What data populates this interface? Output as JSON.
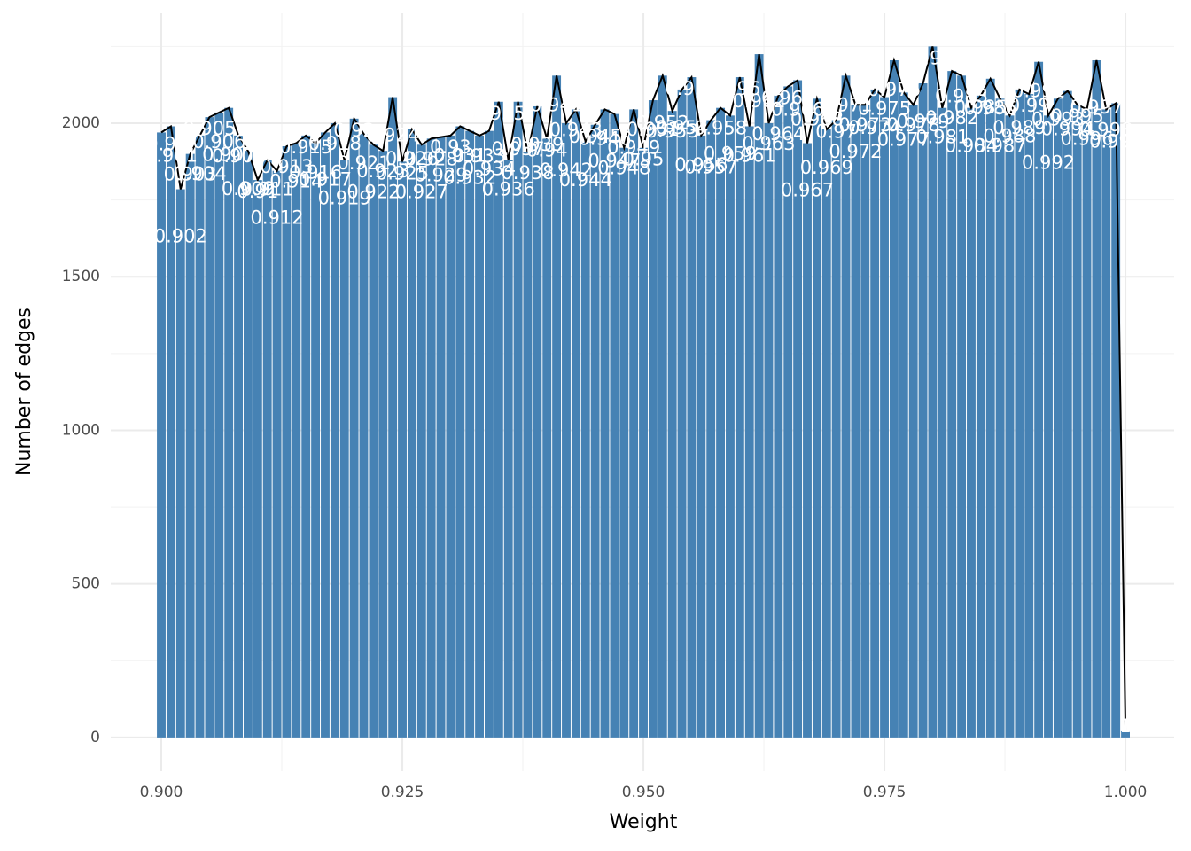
{
  "chart_data": {
    "type": "bar",
    "x_label": "Weight",
    "y_label": "Number of edges",
    "color": "#4682b4",
    "line_color": "#000000",
    "overlay_line": true,
    "grid": true,
    "x": [
      0.9,
      0.901,
      0.902,
      0.903,
      0.904,
      0.905,
      0.906,
      0.907,
      0.908,
      0.909,
      0.91,
      0.911,
      0.912,
      0.913,
      0.914,
      0.915,
      0.916,
      0.917,
      0.918,
      0.919,
      0.92,
      0.921,
      0.922,
      0.923,
      0.924,
      0.925,
      0.926,
      0.927,
      0.928,
      0.929,
      0.93,
      0.931,
      0.932,
      0.933,
      0.934,
      0.935,
      0.936,
      0.937,
      0.938,
      0.939,
      0.94,
      0.941,
      0.942,
      0.943,
      0.944,
      0.945,
      0.946,
      0.947,
      0.948,
      0.949,
      0.95,
      0.951,
      0.952,
      0.953,
      0.954,
      0.955,
      0.956,
      0.957,
      0.958,
      0.959,
      0.96,
      0.961,
      0.962,
      0.963,
      0.964,
      0.965,
      0.966,
      0.967,
      0.968,
      0.969,
      0.97,
      0.971,
      0.972,
      0.973,
      0.974,
      0.975,
      0.976,
      0.977,
      0.978,
      0.979,
      0.98,
      0.981,
      0.982,
      0.983,
      0.984,
      0.985,
      0.986,
      0.987,
      0.988,
      0.989,
      0.99,
      0.991,
      0.992,
      0.993,
      0.994,
      0.995,
      0.996,
      0.997,
      0.998,
      0.999,
      1.0
    ],
    "x_labels": [
      "0.9",
      "0.901",
      "0.902",
      "0.903",
      "0.904",
      "0.905",
      "0.906",
      "0.907",
      "0.908",
      "0.909",
      "0.91",
      "0.911",
      "0.912",
      "0.913",
      "0.914",
      "0.915",
      "0.916",
      "0.917",
      "0.918",
      "0.919",
      "0.92",
      "0.921",
      "0.922",
      "0.923",
      "0.924",
      "0.925",
      "0.926",
      "0.927",
      "0.928",
      "0.929",
      "0.93",
      "0.931",
      "0.932",
      "0.933",
      "0.934",
      "0.935",
      "0.936",
      "0.937",
      "0.938",
      "0.939",
      "0.94",
      "0.941",
      "0.942",
      "0.943",
      "0.944",
      "0.945",
      "0.946",
      "0.947",
      "0.948",
      "0.949",
      "0.95",
      "0.951",
      "0.952",
      "0.953",
      "0.954",
      "0.955",
      "0.956",
      "0.957",
      "0.958",
      "0.959",
      "0.96",
      "0.961",
      "0.962",
      "0.963",
      "0.964",
      "0.965",
      "0.966",
      "0.967",
      "0.968",
      "0.969",
      "0.97",
      "0.971",
      "0.972",
      "0.973",
      "0.974",
      "0.975",
      "0.976",
      "0.977",
      "0.978",
      "0.979",
      "0.98",
      "0.981",
      "0.982",
      "0.983",
      "0.984",
      "0.985",
      "0.986",
      "0.987",
      "0.988",
      "0.989",
      "0.99",
      "0.991",
      "0.992",
      "0.993",
      "0.994",
      "0.995",
      "0.996",
      "0.997",
      "0.998",
      "0.999",
      "1"
    ],
    "values": [
      1970,
      1990,
      1785,
      1900,
      1960,
      2020,
      2035,
      2050,
      1960,
      1910,
      1815,
      1880,
      1845,
      1925,
      1935,
      1960,
      1935,
      1970,
      2000,
      1880,
      2015,
      1965,
      1930,
      1910,
      2085,
      1875,
      1980,
      1930,
      1950,
      1955,
      1960,
      1990,
      1975,
      1960,
      1975,
      2070,
      1880,
      2070,
      1905,
      2055,
      1950,
      2155,
      2000,
      2045,
      1940,
      1995,
      2045,
      2030,
      1920,
      2045,
      1920,
      2075,
      2155,
      2040,
      2110,
      2150,
      1960,
      2010,
      2050,
      2025,
      2150,
      1990,
      2225,
      2000,
      2090,
      2120,
      2140,
      1935,
      2080,
      1980,
      2010,
      2155,
      2060,
      2060,
      2110,
      2085,
      2205,
      2100,
      2060,
      2130,
      2250,
      2050,
      2170,
      2155,
      2050,
      2090,
      2145,
      2080,
      2025,
      2110,
      2095,
      2200,
      2025,
      2080,
      2105,
      2060,
      2045,
      2205,
      2045,
      2065,
      20
    ],
    "xlim": [
      0.89476,
      1.00505
    ],
    "xticks": [
      {
        "value": 0.9,
        "label": "0.900"
      },
      {
        "value": 0.925,
        "label": "0.925"
      },
      {
        "value": 0.95,
        "label": "0.950"
      },
      {
        "value": 0.975,
        "label": "0.975"
      },
      {
        "value": 1.0,
        "label": "1.000"
      }
    ],
    "x_minor_ticks": [
      0.9125,
      0.9375,
      0.9625,
      0.9875
    ],
    "ylim": [
      -110,
      2358
    ],
    "yticks": [
      0,
      500,
      1000,
      1500,
      2000
    ],
    "y_minor_ticks": [
      250,
      750,
      1250,
      1750,
      2250
    ]
  }
}
